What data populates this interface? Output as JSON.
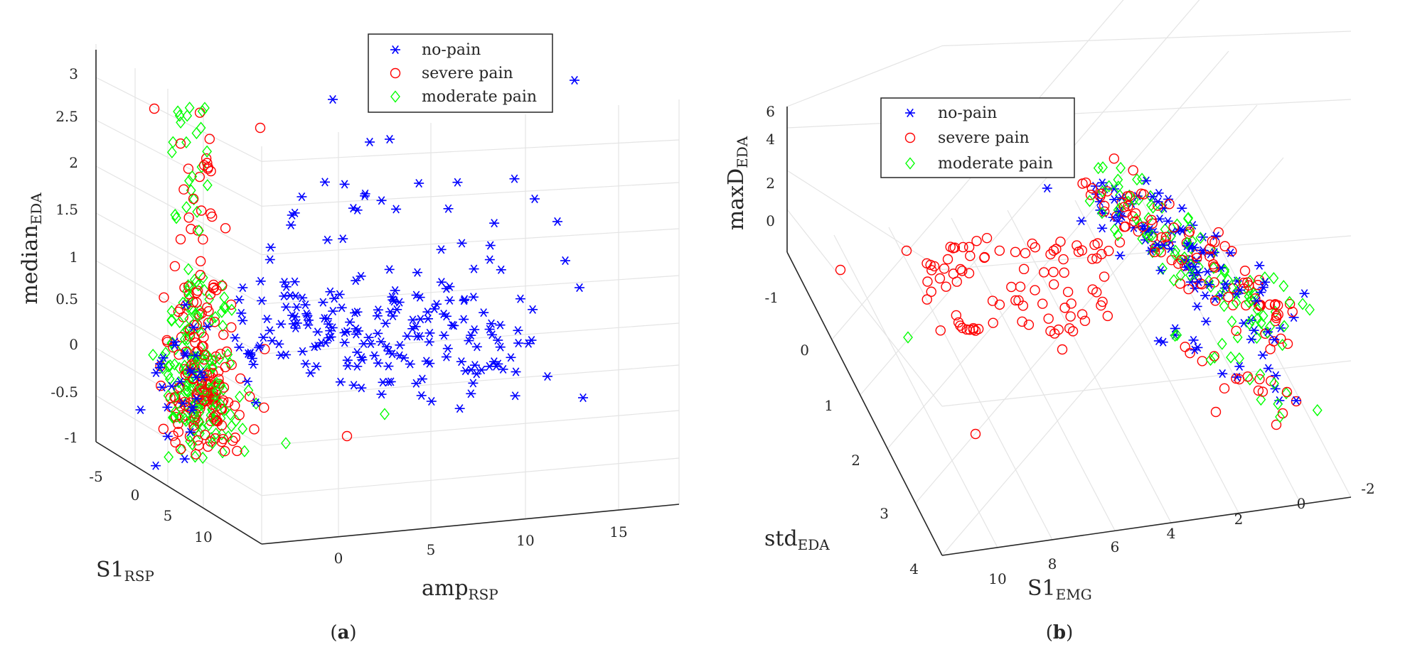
{
  "legend_labels": [
    "no-pain",
    "severe pain",
    "moderate pain"
  ],
  "captions": [
    "(a)",
    "(b)"
  ],
  "chart_data": [
    {
      "type": "scatter",
      "subtype": "3d-scatter",
      "caption": "(a)",
      "x_label": {
        "main": "amp",
        "sub": "RSP"
      },
      "y_label": {
        "main": "S1",
        "sub": "RSP"
      },
      "z_label": {
        "main": "median",
        "sub": "EDA"
      },
      "x_ticks": [
        "0",
        "5",
        "10",
        "15"
      ],
      "y_ticks": [
        "-5",
        "0",
        "5",
        "10"
      ],
      "z_ticks": [
        "-1",
        "-0.5",
        "0",
        "0.5",
        "1",
        "1.5",
        "2",
        "2.5",
        "3"
      ],
      "legend_placement": "top-right",
      "grid": true,
      "series": [
        {
          "name": "no-pain",
          "marker": "asterisk",
          "color": "#0000ff",
          "approx_count": 230
        },
        {
          "name": "severe pain",
          "marker": "circle",
          "color": "#ff0000",
          "approx_count": 230
        },
        {
          "name": "moderate pain",
          "marker": "diamond",
          "color": "#00ff00",
          "approx_count": 230
        }
      ]
    },
    {
      "type": "scatter",
      "subtype": "3d-scatter",
      "caption": "(b)",
      "x_label": {
        "main": "S1",
        "sub": "EMG"
      },
      "y_label": {
        "main": "std",
        "sub": "EDA"
      },
      "z_label": {
        "main": "maxD",
        "sub": "EDA"
      },
      "x_ticks": [
        "10",
        "8",
        "6",
        "4",
        "2",
        "0",
        "-2"
      ],
      "y_ticks": [
        "-1",
        "0",
        "1",
        "2",
        "3",
        "4"
      ],
      "z_ticks": [
        "0",
        "2",
        "4",
        "6"
      ],
      "legend_placement": "top-left",
      "grid": true,
      "series": [
        {
          "name": "no-pain",
          "marker": "asterisk",
          "color": "#0000ff",
          "approx_count": 110
        },
        {
          "name": "severe pain",
          "marker": "circle",
          "color": "#ff0000",
          "approx_count": 260
        },
        {
          "name": "moderate pain",
          "marker": "diamond",
          "color": "#00ff00",
          "approx_count": 170
        }
      ]
    }
  ]
}
